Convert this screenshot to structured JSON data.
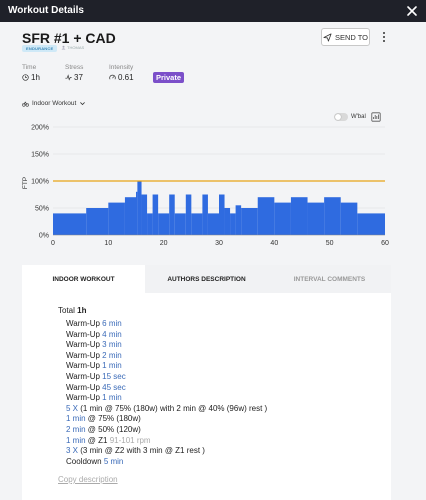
{
  "topbar": {
    "title": "Workout Details"
  },
  "workout": {
    "name": "SFR #1 + CAD",
    "tag": "ENDURANCE",
    "author": "THOMAS"
  },
  "actions": {
    "send_label": "SEND TO"
  },
  "stats": [
    {
      "label": "Time",
      "value": "1h",
      "icon": "clock-icon"
    },
    {
      "label": "Stress",
      "value": "37",
      "icon": "pulse-icon"
    },
    {
      "label": "Intensity",
      "value": "0.61",
      "icon": "gauge-icon"
    }
  ],
  "privacy": "Private",
  "workout_type": "Indoor Workout",
  "wbal_label": "W'bal",
  "chart_data": {
    "type": "area",
    "y_ticks": [
      "0%",
      "50%",
      "100%",
      "150%",
      "200%"
    ],
    "x_ticks": [
      "0",
      "10",
      "20",
      "30",
      "40",
      "50",
      "60"
    ],
    "ylabel": "FTP",
    "xlim": [
      0,
      60
    ],
    "ylim": [
      0,
      200
    ],
    "ftp_line": 100,
    "colors": {
      "bar": "#2f6be0",
      "ftp": "#e8a317"
    },
    "segments": [
      {
        "start": 0,
        "end": 6,
        "value": 40
      },
      {
        "start": 6,
        "end": 10,
        "value": 50
      },
      {
        "start": 10,
        "end": 13,
        "value": 60
      },
      {
        "start": 13,
        "end": 15,
        "value": 70
      },
      {
        "start": 15,
        "end": 15.25,
        "value": 80
      },
      {
        "start": 15.25,
        "end": 16,
        "value": 100
      },
      {
        "start": 16,
        "end": 17,
        "value": 75
      },
      {
        "start": 17,
        "end": 18,
        "value": 40
      },
      {
        "start": 18,
        "end": 19,
        "value": 75
      },
      {
        "start": 19,
        "end": 21,
        "value": 40
      },
      {
        "start": 21,
        "end": 22,
        "value": 75
      },
      {
        "start": 22,
        "end": 24,
        "value": 40
      },
      {
        "start": 24,
        "end": 25,
        "value": 75
      },
      {
        "start": 25,
        "end": 27,
        "value": 40
      },
      {
        "start": 27,
        "end": 28,
        "value": 75
      },
      {
        "start": 28,
        "end": 30,
        "value": 40
      },
      {
        "start": 30,
        "end": 31,
        "value": 75
      },
      {
        "start": 31,
        "end": 32,
        "value": 50
      },
      {
        "start": 32,
        "end": 33,
        "value": 40
      },
      {
        "start": 33,
        "end": 34,
        "value": 55
      },
      {
        "start": 34,
        "end": 37,
        "value": 50
      },
      {
        "start": 37,
        "end": 40,
        "value": 70
      },
      {
        "start": 40,
        "end": 43,
        "value": 60
      },
      {
        "start": 43,
        "end": 46,
        "value": 70
      },
      {
        "start": 46,
        "end": 49,
        "value": 60
      },
      {
        "start": 49,
        "end": 52,
        "value": 70
      },
      {
        "start": 52,
        "end": 55,
        "value": 60
      },
      {
        "start": 55,
        "end": 60,
        "value": 40
      }
    ]
  },
  "tabs": [
    {
      "label": "INDOOR WORKOUT",
      "active": true
    },
    {
      "label": "AUTHORS DESCRIPTION",
      "active": false
    },
    {
      "label": "INTERVAL COMMENTS",
      "active": false
    }
  ],
  "description": {
    "total_label": "Total",
    "total_value": "1h",
    "steps": [
      [
        {
          "t": "Warm-Up "
        },
        {
          "t": "6 min",
          "c": "hl"
        }
      ],
      [
        {
          "t": "Warm-Up "
        },
        {
          "t": "4 min",
          "c": "hl"
        }
      ],
      [
        {
          "t": "Warm-Up "
        },
        {
          "t": "3 min",
          "c": "hl"
        }
      ],
      [
        {
          "t": "Warm-Up "
        },
        {
          "t": "2 min",
          "c": "hl"
        }
      ],
      [
        {
          "t": "Warm-Up "
        },
        {
          "t": "1 min",
          "c": "hl"
        }
      ],
      [
        {
          "t": "Warm-Up "
        },
        {
          "t": "15 sec",
          "c": "hl"
        }
      ],
      [
        {
          "t": "Warm-Up "
        },
        {
          "t": "45 sec",
          "c": "hl"
        }
      ],
      [
        {
          "t": "Warm-Up "
        },
        {
          "t": "1 min",
          "c": "hl"
        }
      ],
      [
        {
          "t": "5 X",
          "c": "hl"
        },
        {
          "t": " (1 min @ 75% (180w)  with 2 min @ 40% (96w) rest )"
        }
      ],
      [
        {
          "t": "1 min",
          "c": "hl"
        },
        {
          "t": " @ 75% (180w)"
        }
      ],
      [
        {
          "t": "2 min",
          "c": "hl"
        },
        {
          "t": " @ 50% (120w)"
        }
      ],
      [
        {
          "t": "1 min",
          "c": "hl"
        },
        {
          "t": " @ Z1 "
        },
        {
          "t": "91-101 rpm",
          "c": "muted"
        }
      ],
      [
        {
          "t": "3 X",
          "c": "hl"
        },
        {
          "t": " (3 min @ Z2  with 3 min @ Z1 rest )"
        }
      ],
      [
        {
          "t": "Cooldown "
        },
        {
          "t": "5 min",
          "c": "hl"
        }
      ]
    ],
    "copy_label": "Copy description"
  }
}
